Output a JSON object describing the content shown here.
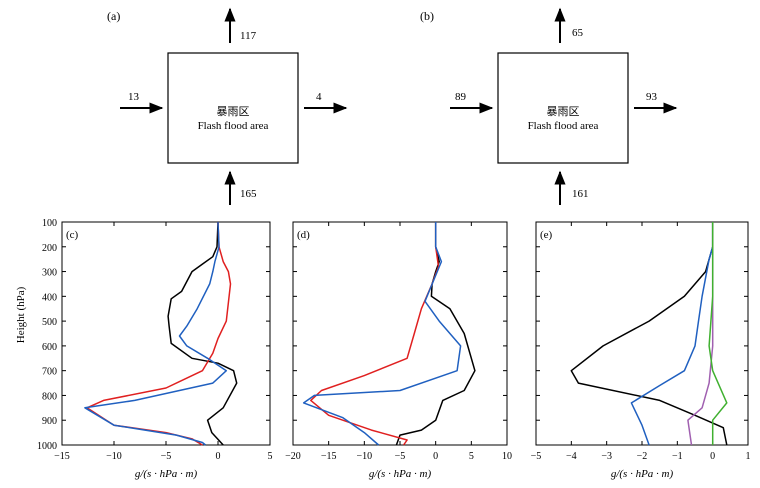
{
  "boxes": [
    {
      "panel_label": "(a)",
      "center_label_zh": "暴雨区",
      "center_label_en": "Flash  flood  area",
      "top_out": "117",
      "left_in": "13",
      "right_out": "4",
      "bottom_in": "165"
    },
    {
      "panel_label": "(b)",
      "center_label_zh": "暴雨区",
      "center_label_en": "Flash  flood  area",
      "top_out": "65",
      "left_in": "89",
      "right_out": "93",
      "bottom_in": "161"
    }
  ],
  "profiles": {
    "ylabel": "Height (hPa)",
    "y_ticks": [
      "100",
      "200",
      "300",
      "400",
      "500",
      "600",
      "700",
      "800",
      "900",
      "1000"
    ]
  },
  "chart_data": [
    {
      "type": "line",
      "panel_label": "(c)",
      "xlabel": "g/(s · hPa · m)",
      "xlim": [
        -15,
        5
      ],
      "ylim": [
        1000,
        100
      ],
      "x_ticks": [
        "−15",
        "−10",
        "−5",
        "0",
        "5"
      ],
      "series": [
        {
          "color": "#000000",
          "points": [
            [
              0,
              100
            ],
            [
              -0.1,
              200
            ],
            [
              -0.5,
              240
            ],
            [
              -1.5,
              270
            ],
            [
              -2.5,
              300
            ],
            [
              -3.5,
              380
            ],
            [
              -4.5,
              410
            ],
            [
              -4.8,
              480
            ],
            [
              -4.7,
              520
            ],
            [
              -4.5,
              590
            ],
            [
              -2.5,
              650
            ],
            [
              0,
              670
            ],
            [
              1.5,
              700
            ],
            [
              1.8,
              750
            ],
            [
              0.5,
              850
            ],
            [
              -1.0,
              900
            ],
            [
              -0.6,
              950
            ],
            [
              0.5,
              1000
            ]
          ]
        },
        {
          "color": "#e02020",
          "points": [
            [
              0,
              100
            ],
            [
              0.1,
              200
            ],
            [
              0.5,
              260
            ],
            [
              1.0,
              300
            ],
            [
              1.2,
              350
            ],
            [
              0.8,
              500
            ],
            [
              0.0,
              570
            ],
            [
              -0.5,
              630
            ],
            [
              -1.5,
              700
            ],
            [
              -5,
              770
            ],
            [
              -11,
              820
            ],
            [
              -12.6,
              850
            ],
            [
              -10,
              920
            ],
            [
              -5,
              950
            ],
            [
              -2.5,
              975
            ],
            [
              -1.5,
              1000
            ]
          ]
        },
        {
          "color": "#2060c0",
          "points": [
            [
              0,
              100
            ],
            [
              0.1,
              200
            ],
            [
              -0.3,
              260
            ],
            [
              -0.5,
              300
            ],
            [
              -0.8,
              350
            ],
            [
              -2,
              450
            ],
            [
              -3.0,
              520
            ],
            [
              -3.7,
              560
            ],
            [
              -3.0,
              600
            ],
            [
              -1.0,
              650
            ],
            [
              0.8,
              700
            ],
            [
              -0.5,
              750
            ],
            [
              -8,
              820
            ],
            [
              -12.8,
              850
            ],
            [
              -10,
              920
            ],
            [
              -4,
              960
            ],
            [
              -1.5,
              990
            ],
            [
              -1.2,
              1000
            ]
          ]
        }
      ]
    },
    {
      "type": "line",
      "panel_label": "(d)",
      "xlabel": "g/(s · hPa · m)",
      "xlim": [
        -20,
        10
      ],
      "ylim": [
        1000,
        100
      ],
      "x_ticks": [
        "−20",
        "−15",
        "−10",
        "−5",
        "0",
        "5",
        "10"
      ],
      "series": [
        {
          "color": "#000000",
          "points": [
            [
              0,
              100
            ],
            [
              0,
              200
            ],
            [
              0.5,
              260
            ],
            [
              0,
              300
            ],
            [
              -0.5,
              350
            ],
            [
              -0.6,
              400
            ],
            [
              2,
              450
            ],
            [
              4,
              550
            ],
            [
              5.5,
              700
            ],
            [
              4,
              780
            ],
            [
              1.0,
              820
            ],
            [
              0,
              900
            ],
            [
              -2,
              940
            ],
            [
              -5,
              960
            ],
            [
              -5.5,
              1000
            ]
          ]
        },
        {
          "color": "#e02020",
          "points": [
            [
              0,
              100
            ],
            [
              0,
              200
            ],
            [
              0.4,
              280
            ],
            [
              -0.5,
              350
            ],
            [
              -2,
              450
            ],
            [
              -3,
              550
            ],
            [
              -4,
              650
            ],
            [
              -10,
              720
            ],
            [
              -16,
              780
            ],
            [
              -17.5,
              820
            ],
            [
              -15,
              880
            ],
            [
              -9,
              940
            ],
            [
              -4,
              980
            ],
            [
              -4.5,
              1000
            ]
          ]
        },
        {
          "color": "#2060c0",
          "points": [
            [
              0,
              100
            ],
            [
              0,
              200
            ],
            [
              0.8,
              260
            ],
            [
              -0.2,
              330
            ],
            [
              -1.5,
              420
            ],
            [
              0.5,
              500
            ],
            [
              3.5,
              600
            ],
            [
              3,
              700
            ],
            [
              -5,
              780
            ],
            [
              -17,
              800
            ],
            [
              -18.5,
              830
            ],
            [
              -13,
              890
            ],
            [
              -10,
              950
            ],
            [
              -8,
              1000
            ]
          ]
        }
      ]
    },
    {
      "type": "line",
      "panel_label": "(e)",
      "xlabel": "g/(s · hPa · m)",
      "xlim": [
        -5,
        1
      ],
      "ylim": [
        1000,
        100
      ],
      "x_ticks": [
        "−5",
        "−4",
        "−3",
        "−2",
        "−1",
        "0",
        "1"
      ],
      "series": [
        {
          "color": "#000000",
          "points": [
            [
              0,
              100
            ],
            [
              0,
              200
            ],
            [
              -0.2,
              300
            ],
            [
              -0.8,
              400
            ],
            [
              -1.8,
              500
            ],
            [
              -3.1,
              600
            ],
            [
              -4.0,
              700
            ],
            [
              -3.8,
              750
            ],
            [
              -1.5,
              820
            ],
            [
              -0.5,
              880
            ],
            [
              0.3,
              930
            ],
            [
              0.4,
              1000
            ]
          ]
        },
        {
          "color": "#2060c0",
          "points": [
            [
              0,
              100
            ],
            [
              0,
              200
            ],
            [
              -0.1,
              250
            ],
            [
              -0.3,
              400
            ],
            [
              -0.4,
              500
            ],
            [
              -0.5,
              600
            ],
            [
              -0.8,
              700
            ],
            [
              -1.5,
              760
            ],
            [
              -2.3,
              830
            ],
            [
              -2.0,
              920
            ],
            [
              -1.8,
              1000
            ]
          ]
        },
        {
          "color": "#a060b0",
          "points": [
            [
              0,
              100
            ],
            [
              0,
              200
            ],
            [
              0,
              400
            ],
            [
              0,
              600
            ],
            [
              -0.1,
              750
            ],
            [
              -0.3,
              850
            ],
            [
              -0.7,
              900
            ],
            [
              -0.6,
              1000
            ]
          ]
        },
        {
          "color": "#40b030",
          "points": [
            [
              0,
              100
            ],
            [
              0,
              200
            ],
            [
              0,
              400
            ],
            [
              -0.1,
              600
            ],
            [
              0,
              700
            ],
            [
              0.4,
              830
            ],
            [
              0,
              900
            ],
            [
              0,
              1000
            ]
          ]
        }
      ]
    }
  ]
}
